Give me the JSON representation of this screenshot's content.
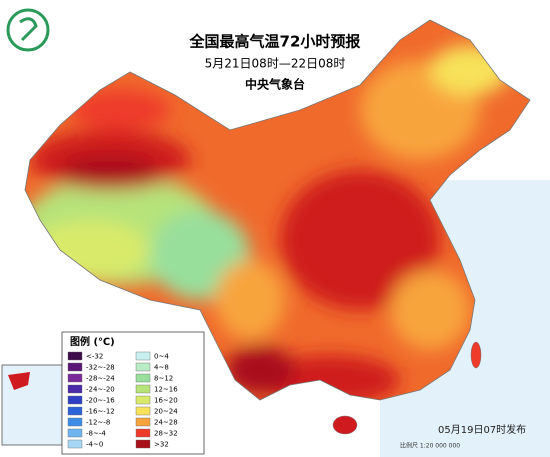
{
  "header": {
    "title": "全国最高气温72小时预报",
    "subtitle": "5月21日08时—22日08时",
    "agency": "中央气象台"
  },
  "legend": {
    "title": "图例 (℃)",
    "items": [
      {
        "label": "<-32",
        "color": "#3d0a4a"
      },
      {
        "label": "-32~-28",
        "color": "#5a1675"
      },
      {
        "label": "-28~-24",
        "color": "#7a2a99"
      },
      {
        "label": "-24~-20",
        "color": "#4b2aa8"
      },
      {
        "label": "-20~-16",
        "color": "#2f3fc4"
      },
      {
        "label": "-16~-12",
        "color": "#2c62d8"
      },
      {
        "label": "-12~-8",
        "color": "#3e8ee8"
      },
      {
        "label": "-8~-4",
        "color": "#6fb6f0"
      },
      {
        "label": "-4~0",
        "color": "#a6d8f5"
      },
      {
        "label": "0~4",
        "color": "#c9eff0"
      },
      {
        "label": "4~8",
        "color": "#b7ecc4"
      },
      {
        "label": "8~12",
        "color": "#98df9c"
      },
      {
        "label": "12~16",
        "color": "#b6e37a"
      },
      {
        "label": "16~20",
        "color": "#d9ea6a"
      },
      {
        "label": "20~24",
        "color": "#f7e25a"
      },
      {
        "label": "24~28",
        "color": "#f8a43c"
      },
      {
        "label": "28~32",
        "color": "#ee3b2a"
      },
      {
        "label": ">32",
        "color": "#a8101a"
      }
    ]
  },
  "footer": {
    "issued": "05月19日07时发布",
    "scale": "比例尺 1:20 000 000"
  }
}
